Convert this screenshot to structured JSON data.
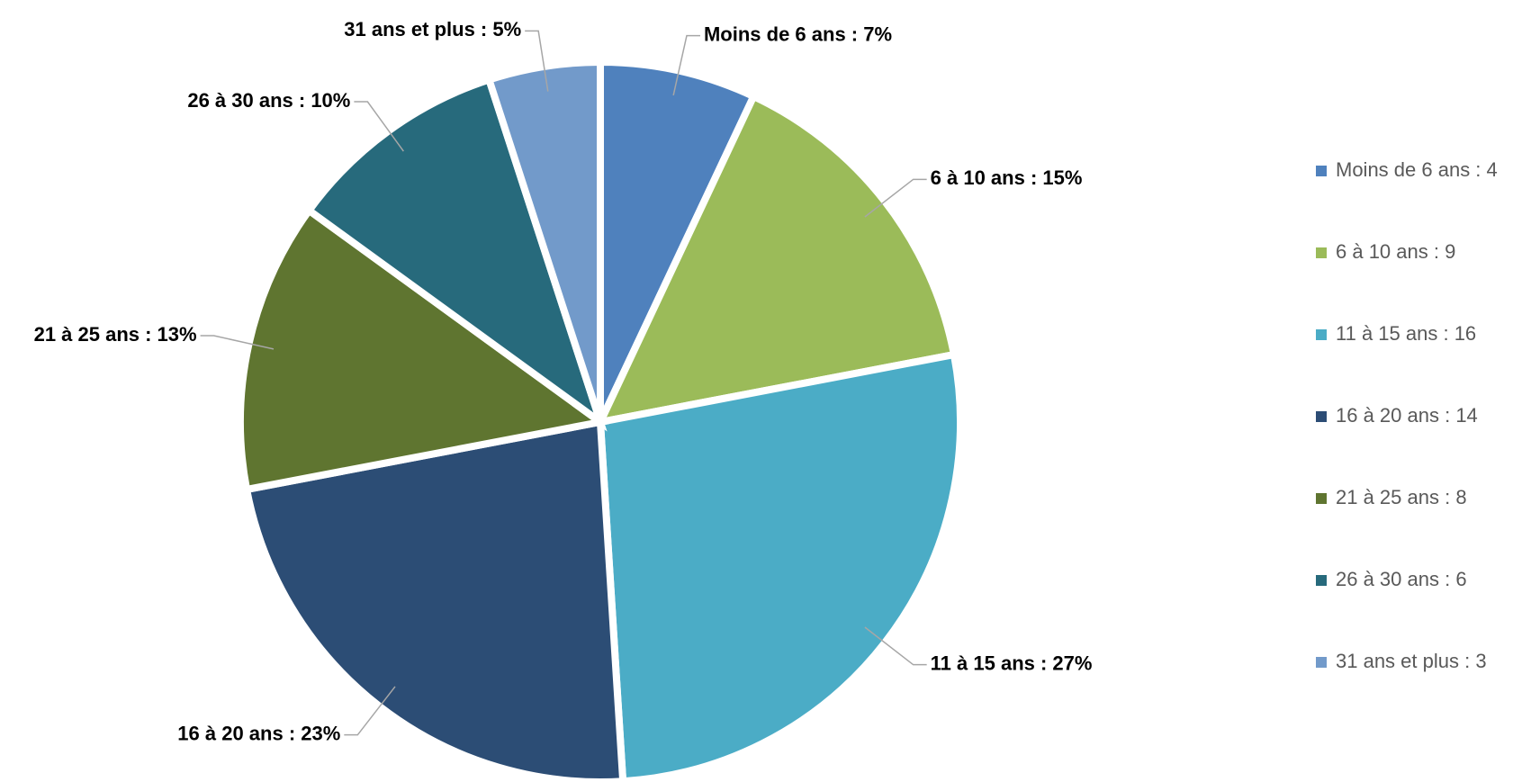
{
  "chart_data": {
    "type": "pie",
    "categories": [
      "Moins de 6 ans : 4",
      "6 à 10 ans : 9",
      "11 à 15 ans : 16",
      "16 à 20 ans : 14",
      "21 à 25 ans : 8",
      "26 à 30 ans : 6",
      "31 ans et plus : 3"
    ],
    "values": [
      7,
      15,
      27,
      23,
      13,
      10,
      5
    ],
    "value_labels": [
      "Moins de 6 ans : 7%",
      "6 à 10 ans : 15%",
      "11 à 15 ans : 27%",
      "16 à 20 ans : 23%",
      "21 à 25 ans : 13%",
      "26 à 30 ans : 10%",
      "31 ans et plus : 5%"
    ],
    "colors": [
      "#4f81bd",
      "#9bbb59",
      "#4bacc6",
      "#2c4d75",
      "#5f7530",
      "#276a7c",
      "#729aca"
    ],
    "legend": "right"
  }
}
